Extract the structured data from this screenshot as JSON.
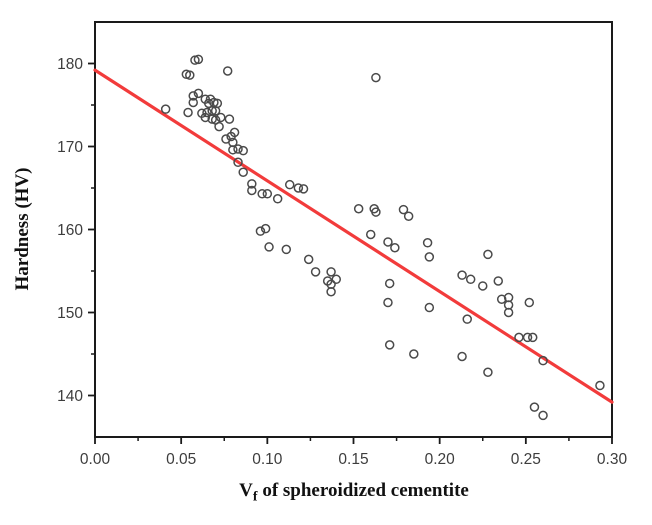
{
  "page": {
    "background": "#ffffff",
    "kind": "scatter plot with linear trend line"
  },
  "chart_data": {
    "type": "scatter",
    "title": "",
    "xlabel_main": "V",
    "xlabel_sub": "f",
    "xlabel_rest": " of spheroidized cementite",
    "ylabel": "Hardness (HV)",
    "xlim": [
      0,
      0.3
    ],
    "ylim": [
      135,
      185
    ],
    "grid": false,
    "legend_position": "none",
    "x_tick_values": [
      0,
      0.05,
      0.1,
      0.15,
      0.2,
      0.25,
      0.3
    ],
    "x_tick_labels": [
      "0.00",
      "0.05",
      "0.10",
      "0.15",
      "0.20",
      "0.25",
      "0.30"
    ],
    "x_minor_ticks": [
      0.025,
      0.075,
      0.125,
      0.175,
      0.225,
      0.275
    ],
    "y_tick_values": [
      140,
      150,
      160,
      170,
      180
    ],
    "y_tick_labels": [
      "140",
      "150",
      "160",
      "170",
      "180"
    ],
    "y_minor_ticks": [
      145,
      155,
      165,
      175
    ],
    "colors": {
      "marker": "#4a4a4a",
      "trend": "#f23b3b",
      "axis": "#1a1a1a",
      "tick_label": "#3d3d3d"
    },
    "series": [
      {
        "name": "hardness-measurements",
        "type": "scatter",
        "marker": "open-circle",
        "color": "#4a4a4a",
        "points": [
          [
            0.041,
            174.5
          ],
          [
            0.053,
            178.7
          ],
          [
            0.055,
            178.6
          ],
          [
            0.058,
            180.4
          ],
          [
            0.06,
            180.5
          ],
          [
            0.054,
            174.1
          ],
          [
            0.057,
            176.1
          ],
          [
            0.057,
            175.3
          ],
          [
            0.06,
            176.4
          ],
          [
            0.062,
            174.0
          ],
          [
            0.064,
            175.7
          ],
          [
            0.065,
            174.1
          ],
          [
            0.064,
            173.5
          ],
          [
            0.066,
            175.2
          ],
          [
            0.067,
            175.7
          ],
          [
            0.068,
            174.3
          ],
          [
            0.068,
            173.3
          ],
          [
            0.069,
            175.3
          ],
          [
            0.07,
            174.3
          ],
          [
            0.07,
            173.2
          ],
          [
            0.071,
            175.2
          ],
          [
            0.073,
            173.5
          ],
          [
            0.072,
            172.4
          ],
          [
            0.077,
            179.1
          ],
          [
            0.078,
            173.3
          ],
          [
            0.076,
            170.9
          ],
          [
            0.079,
            171.2
          ],
          [
            0.081,
            171.7
          ],
          [
            0.08,
            170.5
          ],
          [
            0.08,
            169.6
          ],
          [
            0.083,
            169.7
          ],
          [
            0.086,
            169.5
          ],
          [
            0.083,
            168.1
          ],
          [
            0.086,
            166.9
          ],
          [
            0.091,
            165.5
          ],
          [
            0.091,
            164.7
          ],
          [
            0.097,
            164.3
          ],
          [
            0.1,
            164.3
          ],
          [
            0.106,
            163.7
          ],
          [
            0.113,
            165.4
          ],
          [
            0.118,
            165.0
          ],
          [
            0.121,
            164.9
          ],
          [
            0.096,
            159.8
          ],
          [
            0.099,
            160.1
          ],
          [
            0.101,
            157.9
          ],
          [
            0.111,
            157.6
          ],
          [
            0.124,
            156.4
          ],
          [
            0.128,
            154.9
          ],
          [
            0.137,
            154.9
          ],
          [
            0.14,
            154.0
          ],
          [
            0.135,
            153.8
          ],
          [
            0.137,
            153.4
          ],
          [
            0.137,
            152.5
          ],
          [
            0.153,
            162.5
          ],
          [
            0.162,
            162.5
          ],
          [
            0.163,
            162.1
          ],
          [
            0.179,
            162.4
          ],
          [
            0.182,
            161.6
          ],
          [
            0.16,
            159.4
          ],
          [
            0.17,
            158.5
          ],
          [
            0.174,
            157.8
          ],
          [
            0.163,
            178.3
          ],
          [
            0.193,
            158.4
          ],
          [
            0.194,
            156.7
          ],
          [
            0.171,
            153.5
          ],
          [
            0.17,
            151.2
          ],
          [
            0.194,
            150.6
          ],
          [
            0.171,
            146.1
          ],
          [
            0.185,
            145.0
          ],
          [
            0.213,
            154.5
          ],
          [
            0.218,
            154.0
          ],
          [
            0.225,
            153.2
          ],
          [
            0.234,
            153.8
          ],
          [
            0.228,
            157.0
          ],
          [
            0.216,
            149.2
          ],
          [
            0.213,
            144.7
          ],
          [
            0.228,
            142.8
          ],
          [
            0.236,
            151.6
          ],
          [
            0.24,
            151.8
          ],
          [
            0.24,
            150.9
          ],
          [
            0.24,
            150.0
          ],
          [
            0.252,
            151.2
          ],
          [
            0.246,
            147.0
          ],
          [
            0.251,
            147.0
          ],
          [
            0.254,
            147.0
          ],
          [
            0.26,
            144.2
          ],
          [
            0.255,
            138.6
          ],
          [
            0.26,
            137.6
          ],
          [
            0.293,
            141.2
          ]
        ]
      },
      {
        "name": "linear-fit",
        "type": "line",
        "color": "#f23b3b",
        "points": [
          [
            0,
            179.2
          ],
          [
            0.3,
            139.2
          ]
        ]
      }
    ]
  }
}
